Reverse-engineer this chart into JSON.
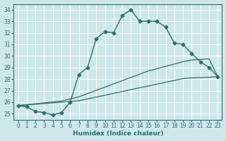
{
  "xlabel": "Humidex (Indice chaleur)",
  "xlim": [
    -0.5,
    23.5
  ],
  "ylim": [
    24.5,
    34.5
  ],
  "yticks": [
    25,
    26,
    27,
    28,
    29,
    30,
    31,
    32,
    33,
    34
  ],
  "xticks": [
    0,
    1,
    2,
    3,
    4,
    5,
    6,
    7,
    8,
    9,
    10,
    11,
    12,
    13,
    14,
    15,
    16,
    17,
    18,
    19,
    20,
    21,
    22,
    23
  ],
  "bg_color": "#cde8eb",
  "grid_color": "#ffffff",
  "line_color": "#2d7068",
  "lines": [
    {
      "x": [
        0,
        1,
        2,
        3,
        4,
        5,
        6,
        7,
        8,
        9,
        10,
        11,
        12,
        13,
        14,
        15,
        16,
        17,
        18,
        19,
        20,
        21,
        22,
        23
      ],
      "y": [
        25.7,
        25.6,
        25.2,
        25.1,
        24.9,
        25.1,
        26.0,
        28.4,
        29.0,
        31.5,
        32.1,
        32.0,
        33.5,
        34.0,
        33.0,
        33.0,
        33.0,
        32.5,
        31.1,
        31.0,
        30.2,
        29.5,
        29.0,
        28.2
      ],
      "marker": "D",
      "markersize": 2.5,
      "linewidth": 1.0
    },
    {
      "x": [
        0,
        1,
        2,
        3,
        4,
        5,
        6,
        7,
        8,
        9,
        10,
        11,
        12,
        13,
        14,
        15,
        16,
        17,
        18,
        19,
        20,
        21,
        22,
        23
      ],
      "y": [
        25.7,
        25.76,
        25.82,
        25.88,
        25.94,
        26.0,
        26.06,
        26.12,
        26.28,
        26.44,
        26.6,
        26.76,
        26.92,
        27.08,
        27.24,
        27.4,
        27.56,
        27.72,
        27.88,
        28.04,
        28.1,
        28.12,
        28.16,
        28.2
      ],
      "marker": null,
      "markersize": 0,
      "linewidth": 0.9
    },
    {
      "x": [
        0,
        1,
        2,
        3,
        4,
        5,
        6,
        7,
        8,
        9,
        10,
        11,
        12,
        13,
        14,
        15,
        16,
        17,
        18,
        19,
        20,
        21,
        22,
        23
      ],
      "y": [
        25.7,
        25.78,
        25.86,
        25.94,
        26.02,
        26.1,
        26.28,
        26.46,
        26.74,
        27.02,
        27.3,
        27.58,
        27.86,
        28.14,
        28.42,
        28.7,
        28.9,
        29.1,
        29.3,
        29.5,
        29.65,
        29.7,
        29.75,
        28.2
      ],
      "marker": null,
      "markersize": 0,
      "linewidth": 0.9
    }
  ]
}
